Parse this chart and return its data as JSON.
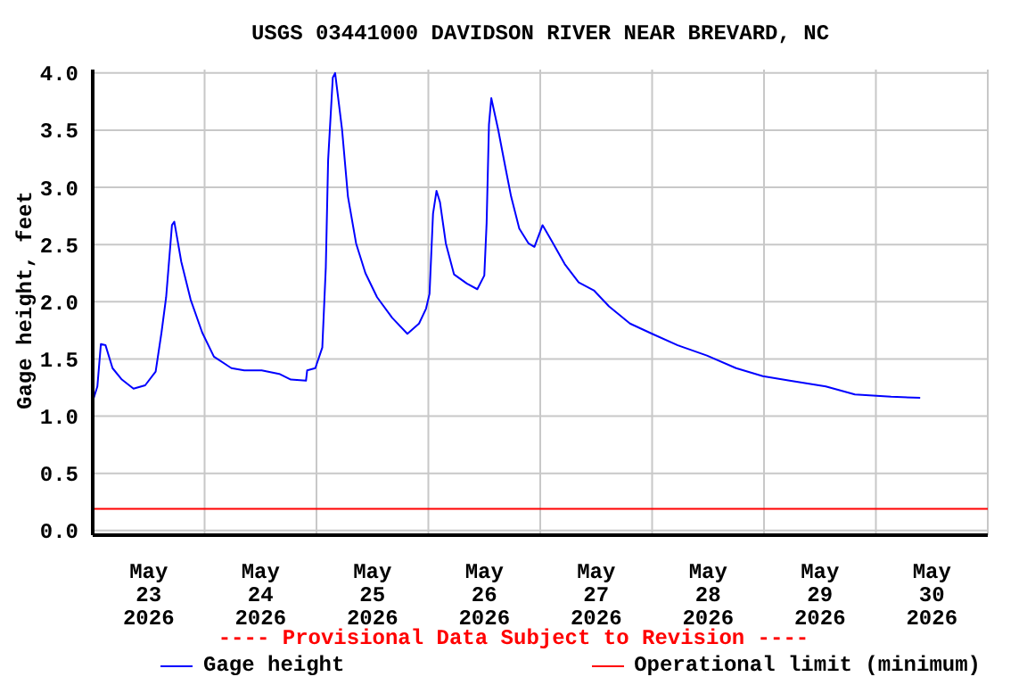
{
  "chart_data": {
    "type": "line",
    "title": "USGS 03441000 DAVIDSON RIVER NEAR BREVARD, NC",
    "ylabel": "Gage height, feet",
    "x": [
      "2026-05-23T00:00",
      "2026-05-23T01:00",
      "2026-05-23T01:45",
      "2026-05-23T02:45",
      "2026-05-23T04:15",
      "2026-05-23T06:15",
      "2026-05-23T08:45",
      "2026-05-23T11:15",
      "2026-05-23T13:30",
      "2026-05-23T14:45",
      "2026-05-23T15:45",
      "2026-05-23T17:00",
      "2026-05-23T17:30",
      "2026-05-23T19:00",
      "2026-05-23T21:00",
      "2026-05-23T23:30",
      "2026-05-24T02:00",
      "2026-05-24T05:45",
      "2026-05-24T08:30",
      "2026-05-24T12:15",
      "2026-05-24T16:00",
      "2026-05-24T18:30",
      "2026-05-24T21:45",
      "2026-05-24T22:00",
      "2026-05-24T23:45",
      "2026-05-25T01:15",
      "2026-05-25T02:00",
      "2026-05-25T02:30",
      "2026-05-25T03:30",
      "2026-05-25T04:00",
      "2026-05-25T05:30",
      "2026-05-25T06:45",
      "2026-05-25T08:30",
      "2026-05-25T10:30",
      "2026-05-25T13:00",
      "2026-05-25T16:15",
      "2026-05-25T19:30",
      "2026-05-25T22:00",
      "2026-05-25T23:30",
      "2026-05-26T00:15",
      "2026-05-26T01:00",
      "2026-05-26T01:45",
      "2026-05-26T02:30",
      "2026-05-26T03:45",
      "2026-05-26T05:30",
      "2026-05-26T08:15",
      "2026-05-26T10:30",
      "2026-05-26T12:00",
      "2026-05-26T12:30",
      "2026-05-26T13:00",
      "2026-05-26T13:30",
      "2026-05-26T15:00",
      "2026-05-26T16:30",
      "2026-05-26T17:45",
      "2026-05-26T19:30",
      "2026-05-26T21:30",
      "2026-05-26T22:45",
      "2026-05-27T00:30",
      "2026-05-27T02:30",
      "2026-05-27T05:15",
      "2026-05-27T08:15",
      "2026-05-27T11:30",
      "2026-05-27T14:45",
      "2026-05-27T19:15",
      "2026-05-28T00:00",
      "2026-05-28T05:30",
      "2026-05-28T11:45",
      "2026-05-28T18:00",
      "2026-05-28T23:45",
      "2026-05-29T05:30",
      "2026-05-29T13:15",
      "2026-05-29T19:30",
      "2026-05-30T03:15",
      "2026-05-30T09:30"
    ],
    "series": [
      {
        "name": "Gage height",
        "color": "#0000ff",
        "values": [
          1.13,
          1.26,
          1.63,
          1.62,
          1.42,
          1.32,
          1.24,
          1.27,
          1.39,
          1.73,
          2.04,
          2.67,
          2.7,
          2.35,
          2.02,
          1.73,
          1.52,
          1.42,
          1.4,
          1.4,
          1.37,
          1.32,
          1.31,
          1.4,
          1.42,
          1.6,
          2.3,
          3.24,
          3.96,
          4.0,
          3.5,
          2.92,
          2.51,
          2.25,
          2.04,
          1.86,
          1.72,
          1.81,
          1.94,
          2.07,
          2.77,
          2.97,
          2.87,
          2.51,
          2.24,
          2.16,
          2.11,
          2.23,
          2.69,
          3.55,
          3.78,
          3.5,
          3.18,
          2.92,
          2.64,
          2.51,
          2.48,
          2.67,
          2.53,
          2.33,
          2.17,
          2.1,
          1.96,
          1.81,
          1.72,
          1.62,
          1.53,
          1.42,
          1.35,
          1.31,
          1.26,
          1.19,
          1.17,
          1.16
        ]
      }
    ],
    "ref_lines": [
      {
        "axis": "y",
        "value": 0.19,
        "label": "Operational limit (minimum)",
        "color": "#ff0000"
      }
    ],
    "xlim": [
      "2026-05-23T00:00",
      "2026-05-31T00:00"
    ],
    "xticks": [
      {
        "value": "2026-05-23T00:00",
        "label": null
      },
      {
        "value": "2026-05-23T12:00",
        "label": "May\n23\n2026"
      },
      {
        "value": "2026-05-24T00:00",
        "label": null
      },
      {
        "value": "2026-05-24T12:00",
        "label": "May\n24\n2026"
      },
      {
        "value": "2026-05-25T00:00",
        "label": null
      },
      {
        "value": "2026-05-25T12:00",
        "label": "May\n25\n2026"
      },
      {
        "value": "2026-05-26T00:00",
        "label": null
      },
      {
        "value": "2026-05-26T12:00",
        "label": "May\n26\n2026"
      },
      {
        "value": "2026-05-27T00:00",
        "label": null
      },
      {
        "value": "2026-05-27T12:00",
        "label": "May\n27\n2026"
      },
      {
        "value": "2026-05-28T00:00",
        "label": null
      },
      {
        "value": "2026-05-28T12:00",
        "label": "May\n28\n2026"
      },
      {
        "value": "2026-05-29T00:00",
        "label": null
      },
      {
        "value": "2026-05-29T12:00",
        "label": "May\n29\n2026"
      },
      {
        "value": "2026-05-30T00:00",
        "label": null
      },
      {
        "value": "2026-05-30T12:00",
        "label": "May\n30\n2026"
      },
      {
        "value": "2026-05-31T00:00",
        "label": null
      }
    ],
    "ylim": [
      -0.04,
      4.03
    ],
    "yticks": [
      {
        "value": 0,
        "label": "0.0"
      },
      {
        "value": 0.5,
        "label": "0.5"
      },
      {
        "value": 1,
        "label": "1.0"
      },
      {
        "value": 1.5,
        "label": "1.5"
      },
      {
        "value": 2,
        "label": "2.0"
      },
      {
        "value": 2.5,
        "label": "2.5"
      },
      {
        "value": 3,
        "label": "3.0"
      },
      {
        "value": 3.5,
        "label": "3.5"
      },
      {
        "value": 4,
        "label": "4.0"
      }
    ],
    "grid": true,
    "legend": "bottom",
    "marker": "none",
    "line_style": "solid",
    "annotations": [
      "---- Provisional Data Subject to Revision ----"
    ]
  }
}
